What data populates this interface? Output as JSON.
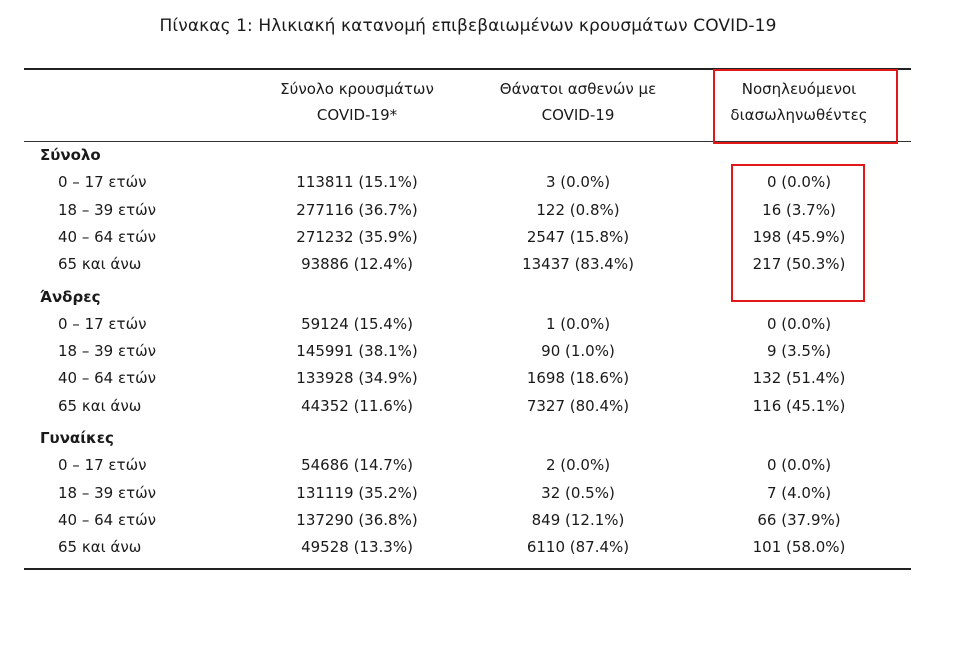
{
  "caption": "Πίνακας 1: Ηλικιακή κατανομή επιβεβαιωμένων κρουσμάτων COVID-19",
  "columns": [
    {
      "line1": "Σύνολο κρουσμάτων",
      "line2": "COVID-19*"
    },
    {
      "line1": "Θάνατοι ασθενών με",
      "line2": "COVID-19"
    },
    {
      "line1": "Νοσηλευόμενοι",
      "line2": "διασωληνωθέντες"
    }
  ],
  "groups": [
    {
      "name": "Σύνολο",
      "rows": [
        {
          "label": "0 – 17 ετών",
          "cases": "113811 (15.1%)",
          "deaths": "3 (0.0%)",
          "intubated": "0 (0.0%)"
        },
        {
          "label": "18 – 39 ετών",
          "cases": "277116 (36.7%)",
          "deaths": "122 (0.8%)",
          "intubated": "16 (3.7%)"
        },
        {
          "label": "40 – 64 ετών",
          "cases": "271232 (35.9%)",
          "deaths": "2547 (15.8%)",
          "intubated": "198 (45.9%)"
        },
        {
          "label": "65 και άνω",
          "cases": "93886 (12.4%)",
          "deaths": "13437 (83.4%)",
          "intubated": "217 (50.3%)"
        }
      ]
    },
    {
      "name": "Άνδρες",
      "rows": [
        {
          "label": "0 – 17 ετών",
          "cases": "59124 (15.4%)",
          "deaths": "1 (0.0%)",
          "intubated": "0 (0.0%)"
        },
        {
          "label": "18 – 39 ετών",
          "cases": "145991 (38.1%)",
          "deaths": "90 (1.0%)",
          "intubated": "9 (3.5%)"
        },
        {
          "label": "40 – 64 ετών",
          "cases": "133928 (34.9%)",
          "deaths": "1698 (18.6%)",
          "intubated": "132 (51.4%)"
        },
        {
          "label": "65 και άνω",
          "cases": "44352 (11.6%)",
          "deaths": "7327 (80.4%)",
          "intubated": "116 (45.1%)"
        }
      ]
    },
    {
      "name": "Γυναίκες",
      "rows": [
        {
          "label": "0 – 17 ετών",
          "cases": "54686 (14.7%)",
          "deaths": "2 (0.0%)",
          "intubated": "0 (0.0%)"
        },
        {
          "label": "18 – 39 ετών",
          "cases": "131119 (35.2%)",
          "deaths": "32 (0.5%)",
          "intubated": "7 (4.0%)"
        },
        {
          "label": "40 – 64 ετών",
          "cases": "137290 (36.8%)",
          "deaths": "849 (12.1%)",
          "intubated": "66 (37.9%)"
        },
        {
          "label": "65 και άνω",
          "cases": "49528 (13.3%)",
          "deaths": "6110 (87.4%)",
          "intubated": "101 (58.0%)"
        }
      ]
    }
  ],
  "highlight_color": "#e01818"
}
